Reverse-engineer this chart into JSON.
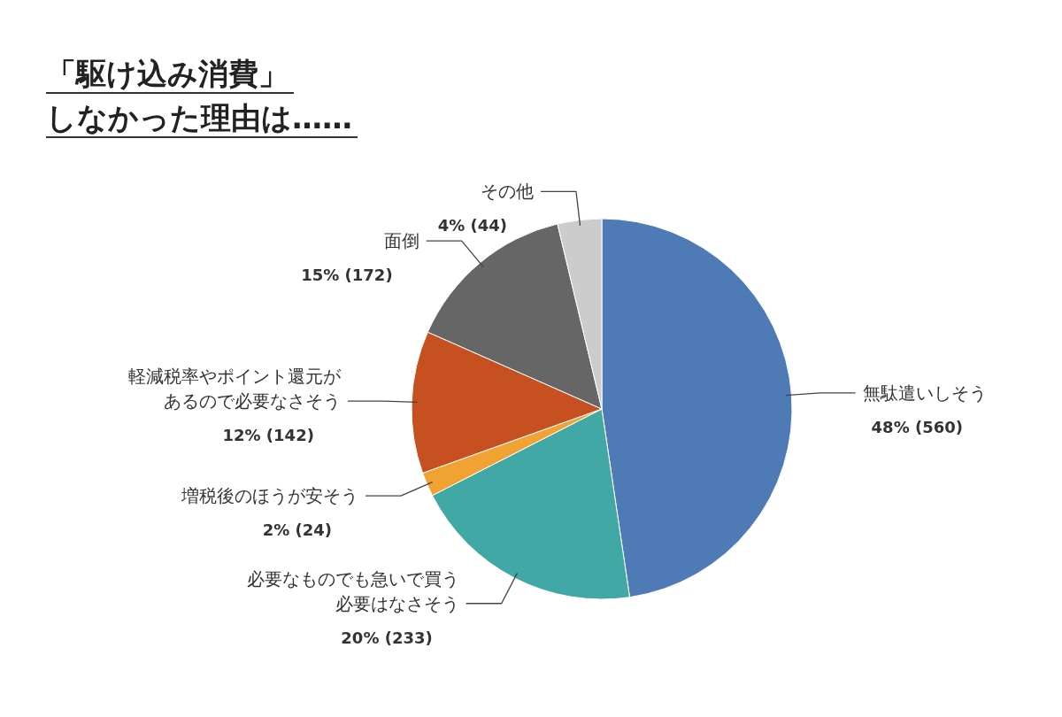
{
  "chart_data": {
    "type": "pie",
    "title": "「駆け込み消費」しなかった理由は……",
    "categories": [
      "無駄遣いしそう",
      "必要なものでも急いで買う必要はなさそう",
      "増税後のほうが安そう",
      "軽減税率やポイント還元があるので必要なさそう",
      "面倒",
      "その他"
    ],
    "values": [
      560,
      233,
      24,
      142,
      172,
      44
    ],
    "colors": [
      "#4e7bb5",
      "#42a8a6",
      "#f0a232",
      "#c6501f",
      "#666666",
      "#cccccc"
    ],
    "value_labels": [
      "48% (560)",
      "20% (233)",
      "2% (24)",
      "12% (142)",
      "15% (172)",
      "4% (44)"
    ]
  }
}
